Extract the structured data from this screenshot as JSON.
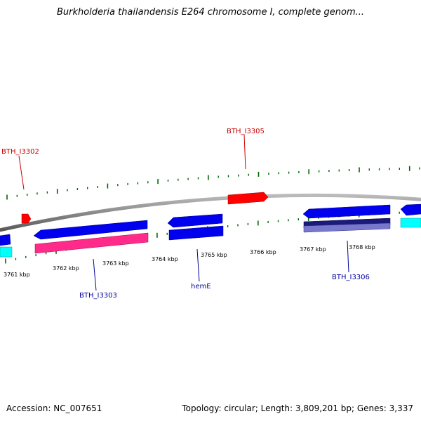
{
  "title": "Burkholderia thailandensis E264 chromosome I, complete genom...",
  "footer": {
    "accession": "Accession: NC_007651",
    "summary": "Topology: circular; Length: 3,809,201 bp; Genes: 3,337"
  },
  "colors": {
    "backbone": "#888888",
    "tick": "#006600",
    "forward_cds": "#ff0000",
    "reverse_cds": "#0000ee",
    "reverse_rna": "#ff2a8a",
    "cyan_feature": "#00ffff",
    "navy_feature": "#1a1a7a",
    "slate_feature": "#7777cc",
    "forward_label": "#cc0000",
    "reverse_label": "#000099"
  },
  "scale": {
    "unit": "kbp",
    "labels": [
      "3761 kbp",
      "3762 kbp",
      "3763 kbp",
      "3764 kbp",
      "3765 kbp",
      "3766 kbp",
      "3767 kbp",
      "3768 kbp"
    ]
  },
  "gene_labels": {
    "forward": [
      "BTH_I3302",
      "BTH_I3305"
    ],
    "reverse": [
      "BTH_I3303",
      "hemE",
      "BTH_I3306"
    ]
  }
}
